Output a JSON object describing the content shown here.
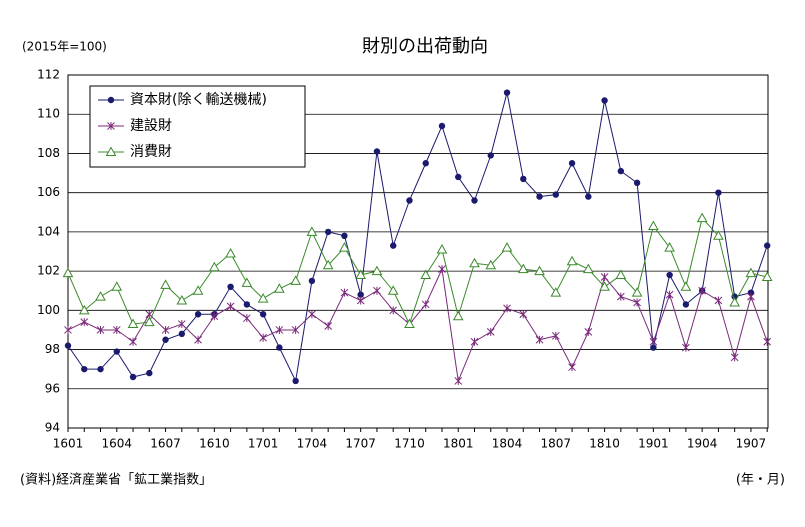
{
  "chart_data": {
    "type": "line",
    "title": "財別の出荷動向",
    "y_label": "(2015年=100)",
    "x_label": "(年・月)",
    "source": "(資料)経済産業省「鉱工業指数」",
    "categories": [
      "1601",
      null,
      null,
      "1604",
      null,
      null,
      "1607",
      null,
      null,
      "1610",
      null,
      null,
      "1701",
      null,
      null,
      "1704",
      null,
      null,
      "1707",
      null,
      null,
      "1710",
      null,
      null,
      "1801",
      null,
      null,
      "1804",
      null,
      null,
      "1807",
      null,
      null,
      "1810",
      null,
      null,
      "1901",
      null,
      null,
      "1904",
      null,
      null,
      "1907",
      null
    ],
    "series": [
      {
        "name": "資本財(除く輸送機械)",
        "color": "#1a1a6e",
        "marker": "circle",
        "values": [
          98.2,
          97.0,
          97.0,
          97.9,
          96.6,
          96.8,
          98.5,
          98.8,
          99.8,
          99.8,
          101.2,
          100.3,
          99.8,
          98.1,
          96.4,
          101.5,
          104.0,
          103.8,
          100.8,
          108.1,
          103.3,
          105.6,
          107.5,
          109.4,
          106.8,
          105.6,
          107.9,
          111.1,
          106.7,
          105.8,
          105.9,
          107.5,
          105.8,
          110.7,
          107.1,
          106.5,
          98.1,
          101.8,
          100.3,
          101.0,
          106.0,
          100.7,
          100.9,
          103.3
        ]
      },
      {
        "name": "建設財",
        "color": "#7a2a7a",
        "marker": "x",
        "values": [
          99.0,
          99.4,
          99.0,
          99.0,
          98.4,
          99.8,
          99.0,
          99.3,
          98.5,
          99.7,
          100.2,
          99.6,
          98.6,
          99.0,
          99.0,
          99.8,
          99.2,
          100.9,
          100.5,
          101.0,
          100.0,
          99.3,
          100.3,
          102.1,
          96.4,
          98.4,
          98.9,
          100.1,
          99.8,
          98.5,
          98.7,
          97.1,
          98.9,
          101.7,
          100.7,
          100.4,
          98.4,
          100.8,
          98.1,
          101.0,
          100.5,
          97.6,
          100.7,
          98.4
        ]
      },
      {
        "name": "消費財",
        "color": "#3a8a2a",
        "marker": "triangle",
        "values": [
          101.9,
          100.0,
          100.7,
          101.2,
          99.3,
          99.4,
          101.3,
          100.5,
          101.0,
          102.2,
          102.9,
          101.4,
          100.6,
          101.1,
          101.5,
          104.0,
          102.3,
          103.2,
          101.8,
          102.0,
          101.0,
          99.3,
          101.8,
          103.1,
          99.7,
          102.4,
          102.3,
          103.2,
          102.1,
          102.0,
          100.9,
          102.5,
          102.1,
          101.2,
          101.8,
          100.9,
          104.3,
          103.2,
          101.2,
          104.7,
          103.8,
          100.4,
          101.9,
          101.7
        ]
      }
    ],
    "ylim": [
      94,
      112
    ],
    "yticks": [
      94,
      96,
      98,
      100,
      102,
      104,
      106,
      108,
      110,
      112
    ],
    "grid": true,
    "legend": "upper left"
  }
}
